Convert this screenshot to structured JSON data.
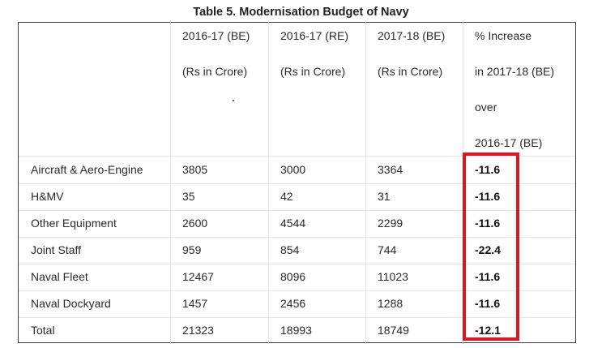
{
  "title": "Table 5. Modernisation Budget of Navy",
  "headers": [
    {
      "line1": "2016-17 (BE)",
      "line2": "(Rs in Crore)"
    },
    {
      "line1": "2016-17 (RE)",
      "line2": "(Rs in Crore)"
    },
    {
      "line1": "2017-18 (BE)",
      "line2": "(Rs in Crore)"
    },
    {
      "line1": "% Increase",
      "line2": "in 2017-18 (BE)",
      "line3": "over",
      "line4": "2016-17 (BE)"
    }
  ],
  "rows": [
    {
      "label": "Aircraft & Aero-Engine",
      "values": [
        "3805",
        "3000",
        "3364",
        "-11.6"
      ]
    },
    {
      "label": "H&MV",
      "values": [
        "35",
        "42",
        "31",
        "-11.6"
      ]
    },
    {
      "label": "Other Equipment",
      "values": [
        "2600",
        "4544",
        "2299",
        "-11.6"
      ]
    },
    {
      "label": "Joint Staff",
      "values": [
        "959",
        "854",
        "744",
        "-22.4"
      ]
    },
    {
      "label": "Naval Fleet",
      "values": [
        "12467",
        "8096",
        "11023",
        "-11.6"
      ]
    },
    {
      "label": "Naval Dockyard",
      "values": [
        "1457",
        "2456",
        "1288",
        "-11.6"
      ]
    },
    {
      "label": "Total",
      "values": [
        "21323",
        "18993",
        "18749",
        "-12.1"
      ]
    }
  ],
  "highlight_color": "#e0161d"
}
